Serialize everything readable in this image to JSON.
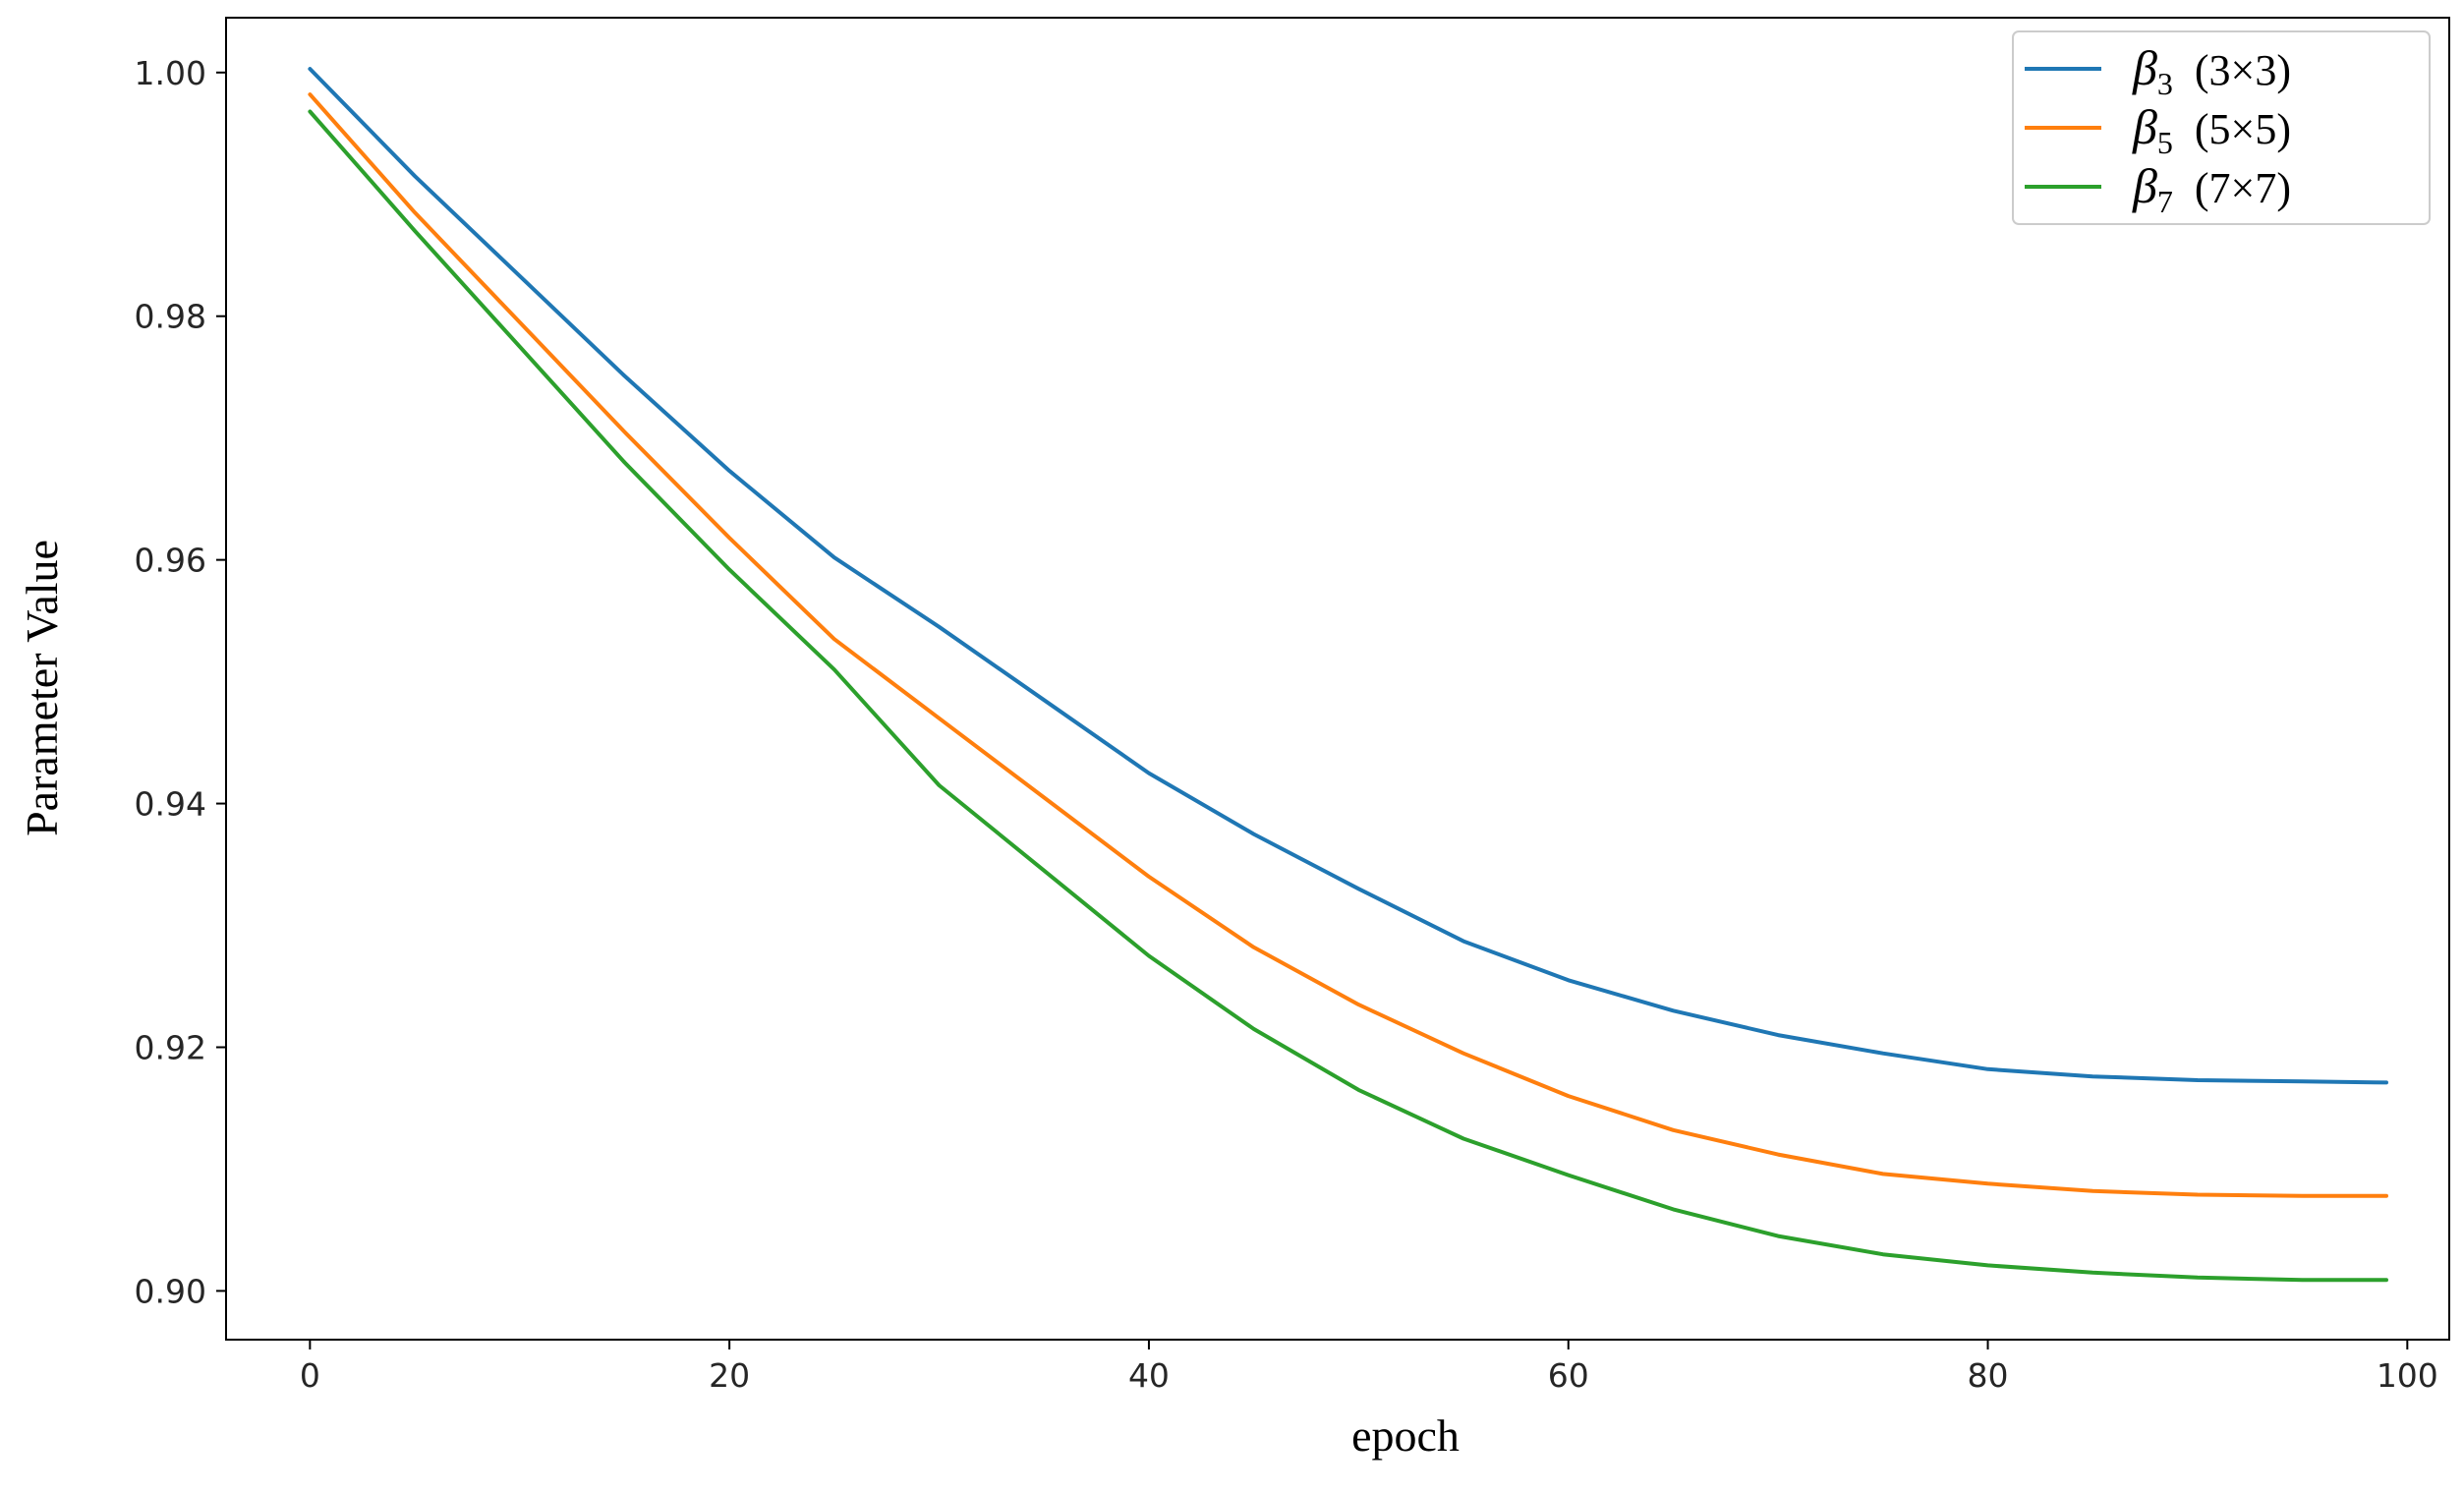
{
  "chart_data": {
    "type": "line",
    "xlabel": "epoch",
    "ylabel": "Parameter Value",
    "xlim": [
      -4,
      102
    ],
    "ylim": [
      0.896,
      1.0045
    ],
    "xticks": [
      0,
      20,
      40,
      60,
      80,
      100
    ],
    "xtick_labels": [
      "0",
      "20",
      "40",
      "60",
      "80",
      "100"
    ],
    "yticks": [
      0.9,
      0.92,
      0.94,
      0.96,
      0.98,
      1.0
    ],
    "ytick_labels": [
      "0.90",
      "0.92",
      "0.94",
      "0.96",
      "0.98",
      "1.00"
    ],
    "grid": false,
    "legend_position": "top-right",
    "x": [
      0,
      5,
      10,
      15,
      20,
      25,
      30,
      35,
      40,
      45,
      50,
      55,
      60,
      65,
      70,
      75,
      80,
      85,
      90,
      95,
      99
    ],
    "series": [
      {
        "name": "(3×3)",
        "symbol": "β",
        "subscript": "3",
        "color": "#1f77b4",
        "values": [
          1.0003,
          0.9915,
          0.9833,
          0.9751,
          0.9673,
          0.9602,
          0.9545,
          0.9485,
          0.9425,
          0.9375,
          0.933,
          0.9287,
          0.9255,
          0.923,
          0.921,
          0.9195,
          0.9182,
          0.9176,
          0.9173,
          0.9172,
          0.9171
        ]
      },
      {
        "name": "(5×5)",
        "symbol": "β",
        "subscript": "5",
        "color": "#ff7f0e",
        "values": [
          0.9982,
          0.9885,
          0.9795,
          0.9705,
          0.9618,
          0.9535,
          0.947,
          0.9405,
          0.934,
          0.9282,
          0.9235,
          0.9195,
          0.916,
          0.9132,
          0.9112,
          0.9096,
          0.9088,
          0.9082,
          0.9079,
          0.9078,
          0.9078
        ]
      },
      {
        "name": "(7×7)",
        "symbol": "β",
        "subscript": "7",
        "color": "#2ca02c",
        "values": [
          0.9968,
          0.987,
          0.9775,
          0.968,
          0.9592,
          0.951,
          0.9415,
          0.9345,
          0.9275,
          0.9215,
          0.9165,
          0.9125,
          0.9095,
          0.9067,
          0.9045,
          0.903,
          0.9021,
          0.9015,
          0.9011,
          0.9009,
          0.9009
        ]
      }
    ]
  }
}
